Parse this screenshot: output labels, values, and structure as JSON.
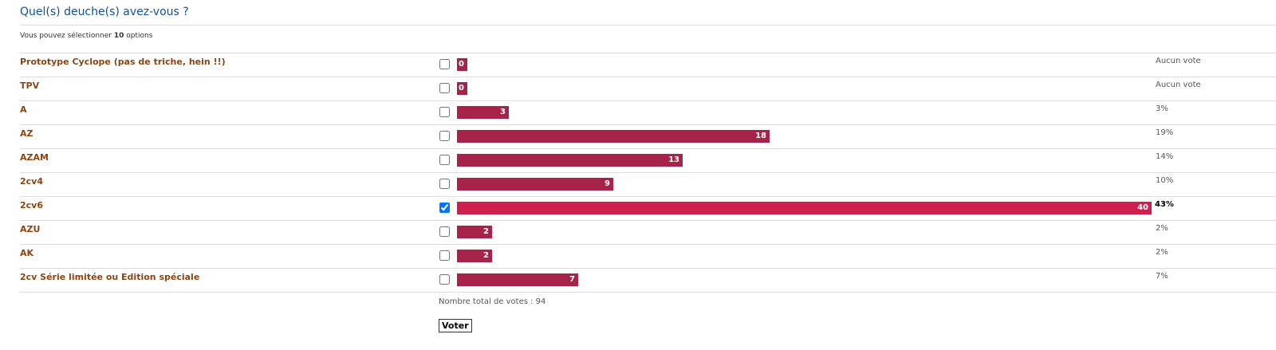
{
  "poll": {
    "title": "Quel(s) deuche(s) avez-vous ?",
    "hint_prefix": "Vous pouvez sélectionner ",
    "hint_count": "10",
    "hint_suffix": " options",
    "total_votes_label": "Nombre total de votes : 94",
    "vote_button": "Voter",
    "max_votes": 40,
    "options": [
      {
        "label": "Prototype Cyclope (pas de triche, hein !!)",
        "votes": "0",
        "percent": "Aucun vote",
        "checked": false
      },
      {
        "label": "TPV",
        "votes": "0",
        "percent": "Aucun vote",
        "checked": false
      },
      {
        "label": "A",
        "votes": "3",
        "percent": "3%",
        "checked": false
      },
      {
        "label": "AZ",
        "votes": "18",
        "percent": "19%",
        "checked": false
      },
      {
        "label": "AZAM",
        "votes": "13",
        "percent": "14%",
        "checked": false
      },
      {
        "label": "2cv4",
        "votes": "9",
        "percent": "10%",
        "checked": false
      },
      {
        "label": "2cv6",
        "votes": "40",
        "percent": "43%",
        "checked": true
      },
      {
        "label": "AZU",
        "votes": "2",
        "percent": "2%",
        "checked": false
      },
      {
        "label": "AK",
        "votes": "2",
        "percent": "2%",
        "checked": false
      },
      {
        "label": "2cv Série limitée ou Edition spéciale",
        "votes": "7",
        "percent": "7%",
        "checked": false
      }
    ]
  },
  "colors": {
    "title": "#115098",
    "label": "#8b4513",
    "bar": "#a7234a",
    "bar_voted": "#cf1f4f"
  }
}
